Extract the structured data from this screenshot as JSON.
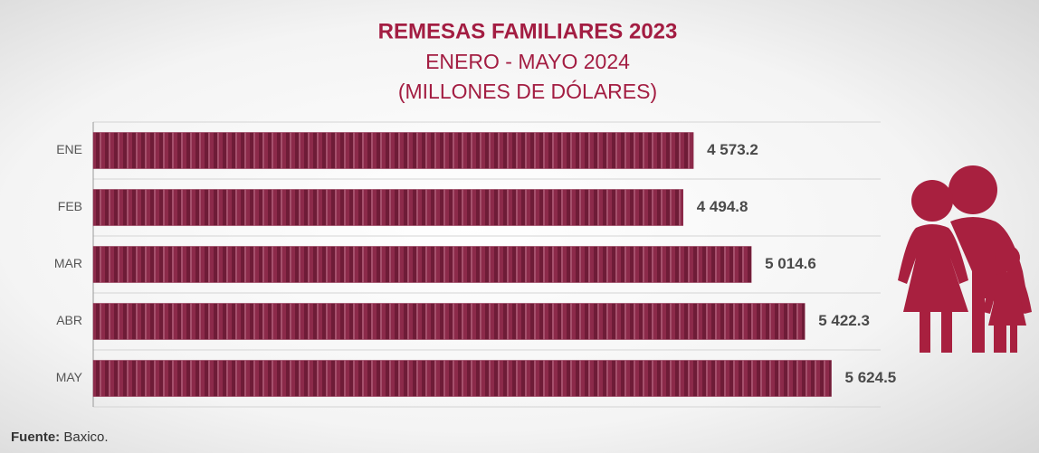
{
  "chart_data": {
    "type": "hbar",
    "title": "REMESAS FAMILIARES 2023",
    "subtitle": "ENERO - MAYO 2024",
    "unit": "(MILLONES DE DÓLARES)",
    "categories": [
      "ENE",
      "FEB",
      "MAR",
      "ABR",
      "MAY"
    ],
    "values": [
      4573.2,
      4494.8,
      5014.6,
      5422.3,
      5624.5
    ],
    "value_labels": [
      "4 573.2",
      "4 494.8",
      "5 014.6",
      "5 422.3",
      "5 624.5"
    ],
    "color": "#8c2a4a",
    "xlim": [
      0,
      6000
    ],
    "grid": true,
    "source_label": "Fuente:",
    "source": "Baxico."
  }
}
